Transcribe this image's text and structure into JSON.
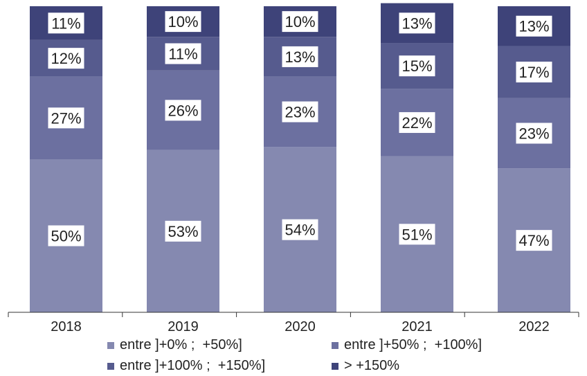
{
  "chart_data": {
    "type": "bar",
    "stacked": true,
    "categories": [
      "2018",
      "2019",
      "2020",
      "2021",
      "2022"
    ],
    "series": [
      {
        "name": "entre ]+0% ;  +50%]",
        "color": "#8589b0",
        "values": [
          50,
          53,
          54,
          51,
          47
        ],
        "labels": [
          "50%",
          "53%",
          "54%",
          "51%",
          "47%"
        ]
      },
      {
        "name": "entre ]+50% ;  +100%]",
        "color": "#6c70a0",
        "values": [
          27,
          26,
          23,
          22,
          23
        ],
        "labels": [
          "27%",
          "26%",
          "23%",
          "22%",
          "23%"
        ]
      },
      {
        "name": "entre ]+100% ;  +150%]",
        "color": "#565b8e",
        "values": [
          12,
          11,
          13,
          15,
          17
        ],
        "labels": [
          "12%",
          "11%",
          "13%",
          "15%",
          "17%"
        ]
      },
      {
        "name": "> +150%",
        "color": "#3e4379",
        "values": [
          11,
          10,
          10,
          13,
          13
        ],
        "labels": [
          "11%",
          "10%",
          "10%",
          "13%",
          "13%"
        ]
      }
    ],
    "ylim": [
      0,
      100
    ],
    "grid": false,
    "legend_position": "bottom"
  }
}
